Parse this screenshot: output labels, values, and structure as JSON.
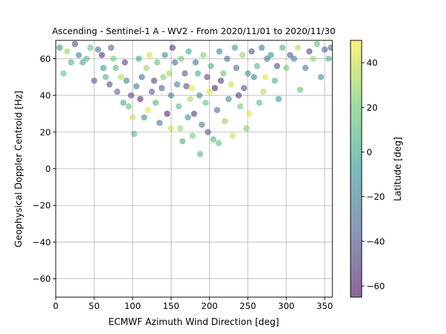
{
  "chart_data": {
    "type": "scatter",
    "title": "Ascending - Sentinel-1 A - WV2 - From 2020/11/01 to 2020/11/30",
    "xlabel": "ECMWF Azimuth Wind Direction [deg]",
    "ylabel": "Geophysical Doppler Centroid [Hz]",
    "xlim": [
      0,
      360
    ],
    "ylim": [
      -70,
      70
    ],
    "xticks": [
      0,
      50,
      100,
      150,
      200,
      250,
      300,
      350
    ],
    "yticks": [
      -60,
      -40,
      -20,
      0,
      20,
      40,
      60
    ],
    "grid": true,
    "marker_alpha": 0.55,
    "colorbar": {
      "label": "Latitude [deg]",
      "range": [
        -65,
        50
      ],
      "ticks": [
        -60,
        -40,
        -20,
        0,
        20,
        40
      ],
      "colormap": "viridis",
      "colormap_stops": [
        "#440154",
        "#3b528b",
        "#21918c",
        "#5ec962",
        "#fde725"
      ]
    },
    "points": [
      {
        "x": 10,
        "y": 52,
        "c": 15
      },
      {
        "x": 20,
        "y": 58,
        "c": 5
      },
      {
        "x": 30,
        "y": 62,
        "c": -20
      },
      {
        "x": 40,
        "y": 60,
        "c": 10
      },
      {
        "x": 50,
        "y": 48,
        "c": -40
      },
      {
        "x": 55,
        "y": 65,
        "c": -30
      },
      {
        "x": 62,
        "y": 55,
        "c": -10
      },
      {
        "x": 70,
        "y": 46,
        "c": -45
      },
      {
        "x": 75,
        "y": 60,
        "c": 20
      },
      {
        "x": 80,
        "y": 42,
        "c": -35
      },
      {
        "x": 85,
        "y": 50,
        "c": 35
      },
      {
        "x": 88,
        "y": 36,
        "c": 0
      },
      {
        "x": 90,
        "y": 58,
        "c": -50
      },
      {
        "x": 95,
        "y": 34,
        "c": 15
      },
      {
        "x": 100,
        "y": 28,
        "c": 40
      },
      {
        "x": 102,
        "y": 19,
        "c": 10
      },
      {
        "x": 105,
        "y": 45,
        "c": -25
      },
      {
        "x": 110,
        "y": 38,
        "c": -55
      },
      {
        "x": 115,
        "y": 28,
        "c": -15
      },
      {
        "x": 118,
        "y": 55,
        "c": 30
      },
      {
        "x": 120,
        "y": 32,
        "c": 45
      },
      {
        "x": 125,
        "y": 42,
        "c": -40
      },
      {
        "x": 130,
        "y": 36,
        "c": 5
      },
      {
        "x": 135,
        "y": 25,
        "c": -30
      },
      {
        "x": 140,
        "y": 50,
        "c": 25
      },
      {
        "x": 145,
        "y": 30,
        "c": -60
      },
      {
        "x": 150,
        "y": 40,
        "c": -20
      },
      {
        "x": 150,
        "y": 22,
        "c": 40
      },
      {
        "x": 155,
        "y": 58,
        "c": -35
      },
      {
        "x": 160,
        "y": 34,
        "c": 10
      },
      {
        "x": 162,
        "y": 22,
        "c": 30
      },
      {
        "x": 165,
        "y": 15,
        "c": 5
      },
      {
        "x": 170,
        "y": 45,
        "c": -45
      },
      {
        "x": 172,
        "y": 28,
        "c": -10
      },
      {
        "x": 175,
        "y": 38,
        "c": 35
      },
      {
        "x": 178,
        "y": 18,
        "c": 20
      },
      {
        "x": 180,
        "y": 30,
        "c": -50
      },
      {
        "x": 185,
        "y": 52,
        "c": 0
      },
      {
        "x": 188,
        "y": 8,
        "c": 10
      },
      {
        "x": 190,
        "y": 24,
        "c": -25
      },
      {
        "x": 195,
        "y": 36,
        "c": 15
      },
      {
        "x": 198,
        "y": 20,
        "c": -40
      },
      {
        "x": 200,
        "y": 42,
        "c": 45
      },
      {
        "x": 205,
        "y": 16,
        "c": 5
      },
      {
        "x": 210,
        "y": 32,
        "c": -30
      },
      {
        "x": 212,
        "y": 14,
        "c": 15
      },
      {
        "x": 215,
        "y": 48,
        "c": -55
      },
      {
        "x": 220,
        "y": 26,
        "c": 30
      },
      {
        "x": 225,
        "y": 38,
        "c": -15
      },
      {
        "x": 230,
        "y": 18,
        "c": 40
      },
      {
        "x": 235,
        "y": 55,
        "c": -35
      },
      {
        "x": 240,
        "y": 34,
        "c": 20
      },
      {
        "x": 245,
        "y": 44,
        "c": -45
      },
      {
        "x": 248,
        "y": 22,
        "c": 25
      },
      {
        "x": 252,
        "y": 30,
        "c": 45
      },
      {
        "x": 258,
        "y": 50,
        "c": -20
      },
      {
        "x": 265,
        "y": 36,
        "c": 10
      },
      {
        "x": 270,
        "y": 42,
        "c": 35
      },
      {
        "x": 275,
        "y": 60,
        "c": -30
      },
      {
        "x": 285,
        "y": 48,
        "c": 5
      },
      {
        "x": 290,
        "y": 38,
        "c": -10
      },
      {
        "x": 300,
        "y": 55,
        "c": 20
      },
      {
        "x": 305,
        "y": 62,
        "c": -40
      },
      {
        "x": 318,
        "y": 43,
        "c": 15
      },
      {
        "x": 325,
        "y": 55,
        "c": -25
      },
      {
        "x": 335,
        "y": 60,
        "c": 30
      },
      {
        "x": 345,
        "y": 50,
        "c": -15
      },
      {
        "x": 350,
        "y": 65,
        "c": -35
      },
      {
        "x": 355,
        "y": 60,
        "c": 5
      },
      {
        "x": 5,
        "y": 66,
        "c": -10
      },
      {
        "x": 15,
        "y": 64,
        "c": 30
      },
      {
        "x": 25,
        "y": 68,
        "c": -45
      },
      {
        "x": 35,
        "y": 58,
        "c": 0
      },
      {
        "x": 45,
        "y": 66,
        "c": 15
      },
      {
        "x": 60,
        "y": 62,
        "c": -55
      },
      {
        "x": 65,
        "y": 50,
        "c": 5
      },
      {
        "x": 72,
        "y": 66,
        "c": -35
      },
      {
        "x": 78,
        "y": 55,
        "c": 10
      },
      {
        "x": 92,
        "y": 48,
        "c": -20
      },
      {
        "x": 98,
        "y": 40,
        "c": -45
      },
      {
        "x": 108,
        "y": 60,
        "c": 0
      },
      {
        "x": 112,
        "y": 50,
        "c": -30
      },
      {
        "x": 122,
        "y": 62,
        "c": 40
      },
      {
        "x": 128,
        "y": 48,
        "c": -50
      },
      {
        "x": 132,
        "y": 58,
        "c": 15
      },
      {
        "x": 138,
        "y": 44,
        "c": -35
      },
      {
        "x": 142,
        "y": 62,
        "c": -15
      },
      {
        "x": 148,
        "y": 52,
        "c": 30
      },
      {
        "x": 152,
        "y": 66,
        "c": -55
      },
      {
        "x": 158,
        "y": 46,
        "c": -25
      },
      {
        "x": 163,
        "y": 60,
        "c": 20
      },
      {
        "x": 168,
        "y": 52,
        "c": -40
      },
      {
        "x": 173,
        "y": 64,
        "c": 0
      },
      {
        "x": 177,
        "y": 44,
        "c": 45
      },
      {
        "x": 182,
        "y": 58,
        "c": -30
      },
      {
        "x": 187,
        "y": 40,
        "c": -10
      },
      {
        "x": 192,
        "y": 62,
        "c": 25
      },
      {
        "x": 197,
        "y": 50,
        "c": -45
      },
      {
        "x": 202,
        "y": 56,
        "c": 5
      },
      {
        "x": 207,
        "y": 44,
        "c": -60
      },
      {
        "x": 213,
        "y": 64,
        "c": -20
      },
      {
        "x": 218,
        "y": 52,
        "c": 15
      },
      {
        "x": 223,
        "y": 60,
        "c": -35
      },
      {
        "x": 228,
        "y": 46,
        "c": 40
      },
      {
        "x": 233,
        "y": 66,
        "c": -5
      },
      {
        "x": 238,
        "y": 40,
        "c": -50
      },
      {
        "x": 243,
        "y": 62,
        "c": 30
      },
      {
        "x": 250,
        "y": 52,
        "c": -15
      },
      {
        "x": 255,
        "y": 64,
        "c": -40
      },
      {
        "x": 262,
        "y": 56,
        "c": 10
      },
      {
        "x": 268,
        "y": 66,
        "c": -25
      },
      {
        "x": 273,
        "y": 50,
        "c": 45
      },
      {
        "x": 280,
        "y": 62,
        "c": -10
      },
      {
        "x": 288,
        "y": 56,
        "c": -45
      },
      {
        "x": 295,
        "y": 66,
        "c": 5
      },
      {
        "x": 310,
        "y": 60,
        "c": -20
      },
      {
        "x": 315,
        "y": 66,
        "c": 35
      },
      {
        "x": 330,
        "y": 64,
        "c": -50
      },
      {
        "x": 340,
        "y": 68,
        "c": 15
      },
      {
        "x": 358,
        "y": 66,
        "c": -30
      }
    ]
  }
}
